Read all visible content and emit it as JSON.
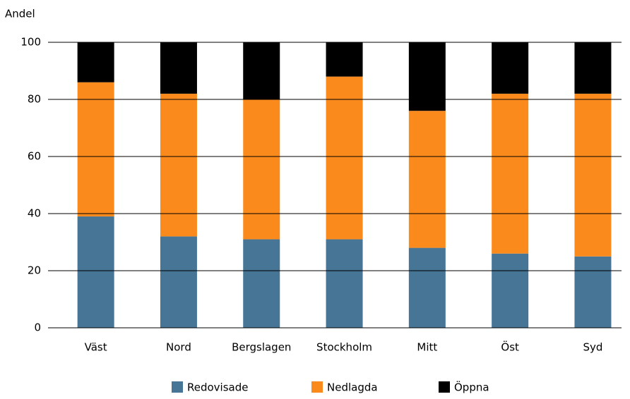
{
  "chart_data": {
    "type": "stacked_bar",
    "y_axis_label": "Andel",
    "categories": [
      "Väst",
      "Nord",
      "Bergslagen",
      "Stockholm",
      "Mitt",
      "Öst",
      "Syd"
    ],
    "series": [
      {
        "name": "Redovisade",
        "color": "#467596",
        "values": [
          39,
          32,
          31,
          31,
          28,
          26,
          25
        ]
      },
      {
        "name": "Nedlagda",
        "color": "#fb8a1c",
        "values": [
          47,
          50,
          49,
          57,
          48,
          56,
          57
        ]
      },
      {
        "name": "Öppna",
        "color": "#000000",
        "values": [
          14,
          18,
          20,
          12,
          24,
          18,
          18
        ]
      }
    ],
    "ylim": [
      0,
      100
    ],
    "yticks": [
      0,
      20,
      40,
      60,
      80,
      100
    ],
    "grid": true,
    "legend": "bottom"
  }
}
